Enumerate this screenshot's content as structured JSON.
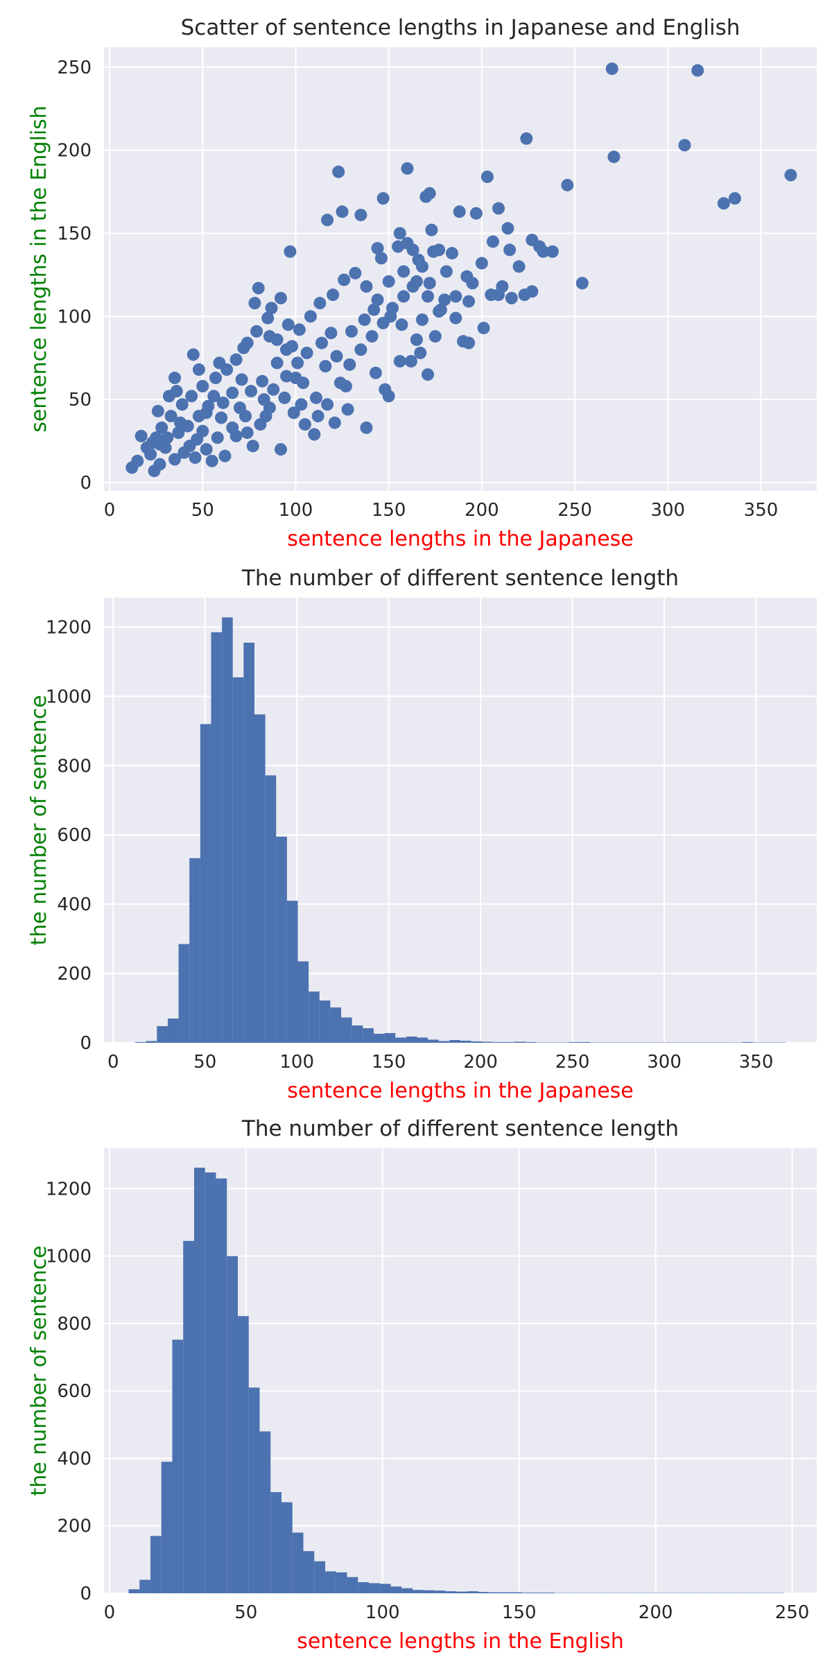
{
  "colors": {
    "axes_bg": "#eaeaf2",
    "grid": "#ffffff",
    "mark": "#4c72b0",
    "xlabel": "#ff0000",
    "ylabel": "#008000",
    "text": "#262626"
  },
  "chart_data": [
    {
      "type": "scatter",
      "title": "Scatter of sentence lengths in Japanese and English",
      "xlabel": "sentence lengths in the Japanese",
      "ylabel": "sentence lengths in the English",
      "xlim": [
        -3,
        380
      ],
      "ylim": [
        -5,
        262
      ],
      "xticks": [
        0,
        50,
        100,
        150,
        200,
        250,
        300,
        350
      ],
      "yticks": [
        0,
        50,
        100,
        150,
        200,
        250
      ],
      "grid": true,
      "points": [
        [
          270,
          249
        ],
        [
          316,
          248
        ],
        [
          224,
          207
        ],
        [
          309,
          203
        ],
        [
          271,
          196
        ],
        [
          366,
          185
        ],
        [
          336,
          171
        ],
        [
          330,
          168
        ],
        [
          246,
          179
        ],
        [
          254,
          120
        ],
        [
          203,
          184
        ],
        [
          160,
          189
        ],
        [
          123,
          187
        ],
        [
          172,
          174
        ],
        [
          170,
          172
        ],
        [
          125,
          163
        ],
        [
          117,
          158
        ],
        [
          135,
          161
        ],
        [
          147,
          171
        ],
        [
          188,
          163
        ],
        [
          197,
          162
        ],
        [
          209,
          165
        ],
        [
          214,
          153
        ],
        [
          156,
          150
        ],
        [
          173,
          152
        ],
        [
          155,
          142
        ],
        [
          160,
          144
        ],
        [
          144,
          141
        ],
        [
          146,
          135
        ],
        [
          163,
          140
        ],
        [
          166,
          134
        ],
        [
          168,
          130
        ],
        [
          174,
          139
        ],
        [
          177,
          140
        ],
        [
          184,
          138
        ],
        [
          192,
          124
        ],
        [
          200,
          132
        ],
        [
          206,
          145
        ],
        [
          215,
          140
        ],
        [
          220,
          130
        ],
        [
          227,
          146
        ],
        [
          231,
          142
        ],
        [
          238,
          139
        ],
        [
          233,
          139
        ],
        [
          209,
          113
        ],
        [
          205,
          113
        ],
        [
          223,
          113
        ],
        [
          227,
          115
        ],
        [
          216,
          111
        ],
        [
          180,
          110
        ],
        [
          186,
          99
        ],
        [
          190,
          85
        ],
        [
          193,
          84
        ],
        [
          201,
          93
        ],
        [
          175,
          88
        ],
        [
          165,
          86
        ],
        [
          167,
          78
        ],
        [
          150,
          52
        ],
        [
          138,
          33
        ],
        [
          171,
          65
        ],
        [
          156,
          73
        ],
        [
          162,
          73
        ],
        [
          148,
          56
        ],
        [
          97,
          139
        ],
        [
          96,
          95
        ],
        [
          92,
          111
        ],
        [
          80,
          117
        ],
        [
          87,
          105
        ],
        [
          78,
          108
        ],
        [
          45,
          77
        ],
        [
          35,
          63
        ],
        [
          26,
          43
        ],
        [
          17,
          28
        ],
        [
          12,
          9
        ],
        [
          15,
          13
        ],
        [
          20,
          21
        ],
        [
          24,
          7
        ],
        [
          27,
          11
        ],
        [
          32,
          52
        ],
        [
          38,
          36
        ],
        [
          43,
          22
        ],
        [
          50,
          31
        ],
        [
          55,
          13
        ],
        [
          62,
          16
        ],
        [
          68,
          28
        ],
        [
          73,
          40
        ],
        [
          77,
          22
        ],
        [
          84,
          40
        ],
        [
          92,
          20
        ],
        [
          99,
          42
        ],
        [
          105,
          35
        ],
        [
          110,
          29
        ],
        [
          117,
          47
        ],
        [
          124,
          60
        ],
        [
          129,
          71
        ],
        [
          135,
          80
        ],
        [
          141,
          88
        ],
        [
          147,
          96
        ],
        [
          152,
          105
        ],
        [
          158,
          112
        ],
        [
          163,
          118
        ],
        [
          172,
          120
        ],
        [
          181,
          127
        ],
        [
          195,
          120
        ],
        [
          211,
          118
        ],
        [
          177,
          103
        ],
        [
          168,
          98
        ],
        [
          143,
          66
        ],
        [
          127,
          58
        ],
        [
          111,
          51
        ],
        [
          100,
          63
        ],
        [
          90,
          72
        ],
        [
          82,
          61
        ],
        [
          70,
          45
        ],
        [
          60,
          39
        ],
        [
          52,
          42
        ],
        [
          47,
          26
        ],
        [
          40,
          18
        ],
        [
          35,
          14
        ],
        [
          30,
          21
        ],
        [
          25,
          27
        ],
        [
          22,
          17
        ],
        [
          28,
          33
        ],
        [
          33,
          40
        ],
        [
          39,
          47
        ],
        [
          44,
          52
        ],
        [
          50,
          58
        ],
        [
          57,
          63
        ],
        [
          63,
          68
        ],
        [
          68,
          74
        ],
        [
          74,
          84
        ],
        [
          79,
          91
        ],
        [
          85,
          99
        ],
        [
          90,
          86
        ],
        [
          95,
          80
        ],
        [
          102,
          92
        ],
        [
          108,
          100
        ],
        [
          113,
          108
        ],
        [
          120,
          113
        ],
        [
          126,
          122
        ],
        [
          132,
          126
        ],
        [
          138,
          118
        ],
        [
          144,
          110
        ],
        [
          151,
          100
        ],
        [
          157,
          95
        ],
        [
          119,
          90
        ],
        [
          114,
          84
        ],
        [
          106,
          78
        ],
        [
          101,
          72
        ],
        [
          95,
          64
        ],
        [
          88,
          56
        ],
        [
          83,
          50
        ],
        [
          76,
          55
        ],
        [
          71,
          62
        ],
        [
          66,
          54
        ],
        [
          61,
          48
        ],
        [
          56,
          52
        ],
        [
          53,
          46
        ],
        [
          48,
          40
        ],
        [
          42,
          34
        ],
        [
          37,
          30
        ],
        [
          31,
          27
        ],
        [
          27,
          23
        ],
        [
          23,
          24
        ],
        [
          36,
          55
        ],
        [
          48,
          68
        ],
        [
          59,
          72
        ],
        [
          72,
          81
        ],
        [
          86,
          88
        ],
        [
          98,
          82
        ],
        [
          104,
          60
        ],
        [
          116,
          70
        ],
        [
          122,
          76
        ],
        [
          130,
          91
        ],
        [
          137,
          98
        ],
        [
          142,
          104
        ],
        [
          150,
          121
        ],
        [
          158,
          127
        ],
        [
          165,
          121
        ],
        [
          171,
          112
        ],
        [
          178,
          104
        ],
        [
          186,
          112
        ],
        [
          193,
          109
        ],
        [
          128,
          44
        ],
        [
          121,
          36
        ],
        [
          112,
          40
        ],
        [
          103,
          47
        ],
        [
          94,
          51
        ],
        [
          86,
          45
        ],
        [
          81,
          35
        ],
        [
          74,
          30
        ],
        [
          66,
          33
        ],
        [
          58,
          27
        ],
        [
          52,
          20
        ],
        [
          46,
          15
        ]
      ]
    },
    {
      "type": "bar",
      "title": "The number of different sentence length",
      "xlabel": "sentence lengths in the Japanese",
      "ylabel": "the number of sentence",
      "xlim": [
        -5,
        383
      ],
      "ylim": [
        0,
        1285
      ],
      "xticks": [
        0,
        50,
        100,
        150,
        200,
        250,
        300,
        350
      ],
      "yticks": [
        0,
        200,
        400,
        600,
        800,
        1000,
        1200
      ],
      "grid": true,
      "bin_start": 12,
      "bin_width": 5.9,
      "values": [
        2,
        5,
        48,
        70,
        285,
        533,
        920,
        1185,
        1228,
        1055,
        1155,
        948,
        772,
        595,
        410,
        235,
        148,
        122,
        102,
        73,
        50,
        42,
        26,
        28,
        15,
        18,
        15,
        9,
        5,
        8,
        6,
        4,
        3,
        2,
        2,
        3,
        2,
        1,
        1,
        1,
        2,
        2,
        1,
        1,
        1,
        1,
        1,
        1,
        1,
        1,
        1,
        1,
        1,
        1,
        1,
        1,
        2,
        1,
        1,
        1
      ]
    },
    {
      "type": "bar",
      "title": "The number of different sentence length",
      "xlabel": "sentence lengths in the English",
      "ylabel": "the number of sentence",
      "xlim": [
        -2,
        259
      ],
      "ylim": [
        0,
        1320
      ],
      "xticks": [
        0,
        50,
        100,
        150,
        200,
        250
      ],
      "yticks": [
        0,
        200,
        400,
        600,
        800,
        1000,
        1200
      ],
      "grid": true,
      "bin_start": 7,
      "bin_width": 4.0,
      "values": [
        12,
        40,
        170,
        390,
        752,
        1045,
        1262,
        1248,
        1230,
        1000,
        822,
        610,
        480,
        300,
        270,
        180,
        125,
        95,
        65,
        62,
        48,
        33,
        30,
        28,
        20,
        15,
        10,
        9,
        8,
        6,
        5,
        6,
        4,
        3,
        3,
        3,
        2,
        2,
        2,
        1,
        1,
        1,
        1,
        1,
        1,
        1,
        1,
        1,
        1,
        1,
        1,
        1,
        1,
        1,
        1,
        1,
        1,
        1,
        1,
        1
      ]
    }
  ]
}
